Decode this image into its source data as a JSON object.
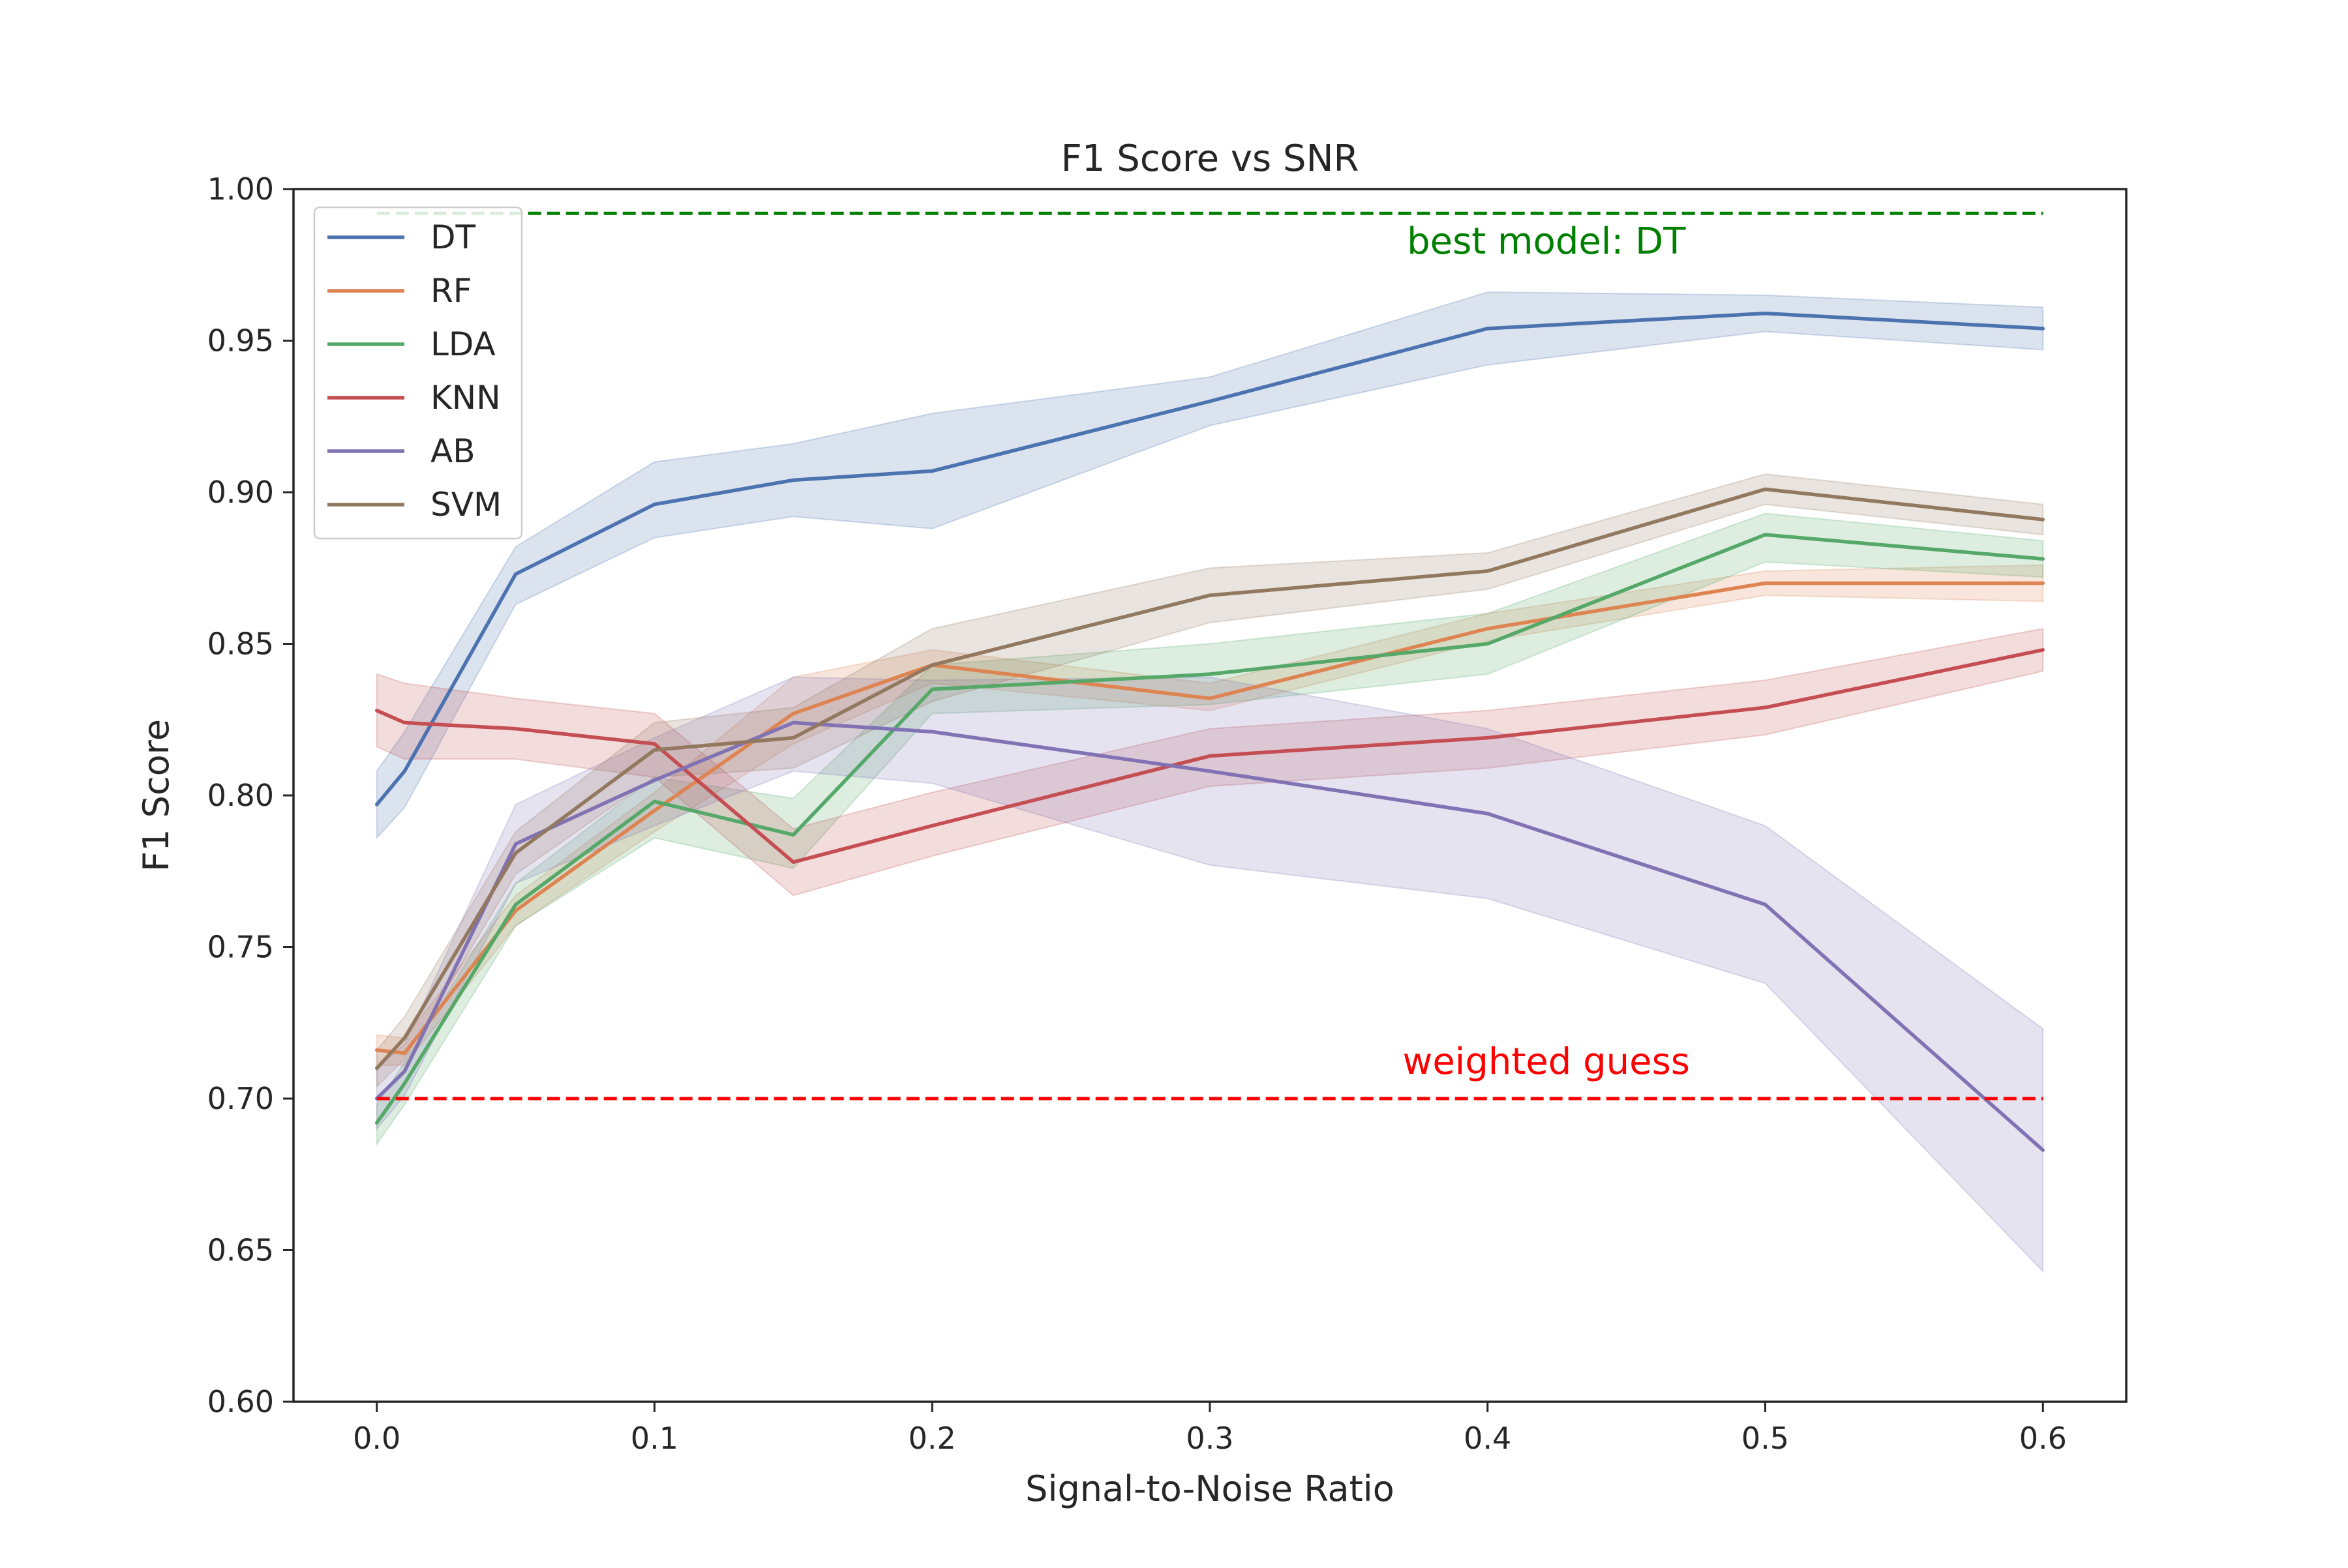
{
  "chart_data": {
    "type": "line",
    "title": "F1 Score vs SNR",
    "xlabel": "Signal-to-Noise Ratio",
    "ylabel": "F1 Score",
    "xlim": [
      -0.03,
      0.63
    ],
    "ylim": [
      0.6,
      1.0
    ],
    "x_ticks": [
      0.0,
      0.1,
      0.2,
      0.3,
      0.4,
      0.5,
      0.6
    ],
    "x_tick_labels": [
      "0.0",
      "0.1",
      "0.2",
      "0.3",
      "0.4",
      "0.5",
      "0.6"
    ],
    "y_ticks": [
      0.6,
      0.65,
      0.7,
      0.75,
      0.8,
      0.85,
      0.9,
      0.95,
      1.0
    ],
    "y_tick_labels": [
      "0.60",
      "0.65",
      "0.70",
      "0.75",
      "0.80",
      "0.85",
      "0.90",
      "0.95",
      "1.00"
    ],
    "grid": false,
    "legend_position": "top-left",
    "x": [
      0.0,
      0.01,
      0.05,
      0.1,
      0.15,
      0.2,
      0.3,
      0.4,
      0.5,
      0.6
    ],
    "series": [
      {
        "name": "DT",
        "color": "#4c72b0",
        "values": [
          0.797,
          0.808,
          0.873,
          0.896,
          0.904,
          0.907,
          0.93,
          0.954,
          0.959,
          0.954
        ],
        "lower": [
          0.786,
          0.796,
          0.863,
          0.885,
          0.892,
          0.888,
          0.922,
          0.942,
          0.953,
          0.947
        ],
        "upper": [
          0.808,
          0.821,
          0.882,
          0.91,
          0.916,
          0.926,
          0.938,
          0.966,
          0.965,
          0.961
        ]
      },
      {
        "name": "RF",
        "color": "#dd8452",
        "values": [
          0.716,
          0.715,
          0.762,
          0.795,
          0.827,
          0.843,
          0.832,
          0.855,
          0.87,
          0.87
        ],
        "lower": [
          0.711,
          0.711,
          0.757,
          0.788,
          0.817,
          0.837,
          0.828,
          0.851,
          0.866,
          0.864
        ],
        "upper": [
          0.721,
          0.72,
          0.767,
          0.801,
          0.839,
          0.848,
          0.837,
          0.86,
          0.874,
          0.876
        ]
      },
      {
        "name": "LDA",
        "color": "#55a868",
        "values": [
          0.692,
          0.705,
          0.764,
          0.798,
          0.787,
          0.835,
          0.84,
          0.85,
          0.886,
          0.878
        ],
        "lower": [
          0.685,
          0.698,
          0.757,
          0.786,
          0.776,
          0.827,
          0.83,
          0.84,
          0.877,
          0.872
        ],
        "upper": [
          0.698,
          0.712,
          0.771,
          0.806,
          0.799,
          0.843,
          0.85,
          0.86,
          0.893,
          0.884
        ]
      },
      {
        "name": "KNN",
        "color": "#c44e52",
        "values": [
          0.828,
          0.824,
          0.822,
          0.817,
          0.778,
          0.79,
          0.813,
          0.819,
          0.829,
          0.848
        ],
        "lower": [
          0.816,
          0.812,
          0.812,
          0.806,
          0.767,
          0.78,
          0.803,
          0.809,
          0.82,
          0.841
        ],
        "upper": [
          0.84,
          0.837,
          0.832,
          0.827,
          0.789,
          0.801,
          0.822,
          0.828,
          0.838,
          0.855
        ]
      },
      {
        "name": "AB",
        "color": "#8172b3",
        "values": [
          0.7,
          0.709,
          0.784,
          0.805,
          0.824,
          0.821,
          0.808,
          0.794,
          0.764,
          0.683
        ],
        "lower": [
          0.69,
          0.701,
          0.771,
          0.79,
          0.808,
          0.804,
          0.777,
          0.766,
          0.738,
          0.643
        ],
        "upper": [
          0.71,
          0.718,
          0.797,
          0.819,
          0.839,
          0.838,
          0.839,
          0.822,
          0.79,
          0.723
        ]
      },
      {
        "name": "SVM",
        "color": "#937860",
        "values": [
          0.71,
          0.72,
          0.781,
          0.815,
          0.819,
          0.843,
          0.866,
          0.874,
          0.901,
          0.891
        ],
        "lower": [
          0.704,
          0.713,
          0.774,
          0.806,
          0.809,
          0.831,
          0.857,
          0.868,
          0.896,
          0.886
        ],
        "upper": [
          0.716,
          0.727,
          0.788,
          0.824,
          0.829,
          0.855,
          0.875,
          0.88,
          0.906,
          0.896
        ]
      }
    ],
    "reference_lines": [
      {
        "label": "best model: DT",
        "y": 0.992,
        "x_start": 0.0,
        "x_end": 0.6,
        "color": "#008000",
        "style": "dashed"
      },
      {
        "label": "weighted guess",
        "y": 0.7,
        "x_start": 0.0,
        "x_end": 0.6,
        "color": "#ff0000",
        "style": "dashed"
      }
    ]
  }
}
